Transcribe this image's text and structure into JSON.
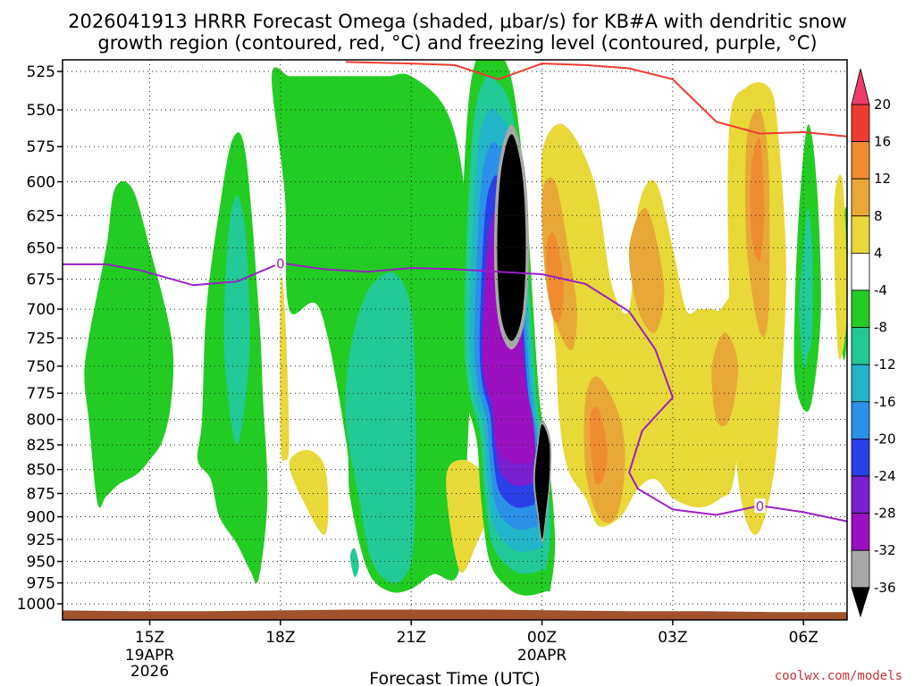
{
  "colors": {
    "fz_contour": "#9b1fc4",
    "dgz_contour": "#ee3b30",
    "terrain": "#a0522d",
    "credit": "#cc3333"
  },
  "credit": "coolwx.com/models",
  "chart_data": {
    "type": "heatmap",
    "title_line1": "2026041913 HRRR Forecast Omega (shaded, μbar/s) for KB#A with dendritic snow",
    "title_line2": "growth region (contoured, red, °C) and freezing level (contoured, purple, °C)",
    "xlabel": "Forecast Time (UTC)",
    "ylabel": "",
    "x_units": "hours after 13Z 19APR",
    "xlim": [
      0,
      18
    ],
    "ylim": [
      1000,
      525
    ],
    "grid": true,
    "x_ticks": [
      {
        "x": 2,
        "label": "15Z",
        "sub1": "19APR",
        "sub2": "2026"
      },
      {
        "x": 5,
        "label": "18Z",
        "sub1": "",
        "sub2": ""
      },
      {
        "x": 8,
        "label": "21Z",
        "sub1": "",
        "sub2": ""
      },
      {
        "x": 11,
        "label": "00Z",
        "sub1": "20APR",
        "sub2": ""
      },
      {
        "x": 14,
        "label": "03Z",
        "sub1": "",
        "sub2": ""
      },
      {
        "x": 17,
        "label": "06Z",
        "sub1": "",
        "sub2": ""
      }
    ],
    "y_ticks": [
      "525",
      "550",
      "575",
      "600",
      "625",
      "650",
      "675",
      "700",
      "725",
      "750",
      "775",
      "800",
      "825",
      "850",
      "875",
      "900",
      "925",
      "950",
      "975",
      "1000"
    ],
    "colorbar": {
      "labels": [
        "20",
        "16",
        "12",
        "8",
        "4",
        "-4",
        "-8",
        "-12",
        "-16",
        "-20",
        "-24",
        "-28",
        "-32",
        "-36"
      ],
      "colors": [
        "#ee3b6a",
        "#ee3b30",
        "#f08c30",
        "#e8a838",
        "#e8d838",
        "#ffffff",
        "#22cc22",
        "#22c896",
        "#22b4c8",
        "#2a90e8",
        "#2a40e8",
        "#7a20d0",
        "#9b10c0",
        "#a8a8a8",
        "#000000"
      ]
    },
    "freezing_level": {
      "label": "0",
      "x": [
        0,
        1,
        1.8,
        3,
        4,
        5,
        6,
        7,
        8,
        9,
        10,
        11,
        12,
        13,
        13.6,
        14,
        13.3,
        13,
        13.2,
        14,
        15,
        16,
        17,
        18
      ],
      "p": [
        663,
        663,
        668,
        680,
        677,
        662,
        667,
        669,
        666,
        667,
        669,
        671,
        679,
        702,
        735,
        779,
        811,
        853,
        870,
        892,
        898,
        888,
        895,
        905
      ]
    },
    "dgz_top": {
      "x": [
        6.5,
        8,
        9,
        10,
        11,
        12,
        13,
        14,
        15,
        16,
        17,
        18
      ],
      "p": [
        519,
        520,
        521,
        530,
        520,
        521,
        523,
        530,
        558,
        566,
        565,
        568
      ]
    },
    "terrain_pressure": [
      1008,
      1009,
      1009,
      1008,
      1007,
      1007,
      1007,
      1008,
      1009,
      1009,
      1010,
      1010
    ],
    "omega_regions": [
      {
        "name": "west-green",
        "x": [
          0.6,
          1.0,
          1.2,
          1.6,
          2.0,
          2.5,
          2.5,
          2.3,
          2.0,
          1.7,
          1.3,
          1.0,
          0.8,
          0.6,
          0.5
        ],
        "p": [
          725,
          650,
          605,
          605,
          650,
          725,
          780,
          820,
          840,
          855,
          865,
          878,
          885,
          800,
          760
        ],
        "value": -6
      },
      {
        "name": "col2-green",
        "x": [
          3.2,
          3.3,
          3.6,
          3.9,
          4.2,
          4.5,
          4.6,
          4.7,
          4.5,
          4.3,
          4.0,
          3.6,
          3.4,
          3.1
        ],
        "p": [
          800,
          700,
          620,
          570,
          580,
          700,
          780,
          880,
          970,
          960,
          930,
          900,
          860,
          840
        ],
        "value": -6
      },
      {
        "name": "col2-teal",
        "x": [
          3.7,
          3.8,
          4.0,
          4.2,
          4.3,
          4.2,
          4.0,
          3.8
        ],
        "p": [
          720,
          640,
          610,
          640,
          720,
          780,
          825,
          780
        ],
        "value": -10
      },
      {
        "name": "big-green",
        "x": [
          4.8,
          5.2,
          5.5,
          5.6,
          6.2,
          6.7,
          7.2,
          7.5,
          8.0,
          8.8,
          9.2,
          9.4,
          9.3,
          9.1,
          8.5,
          8.0,
          7.5,
          7.0,
          6.6,
          6.5,
          5.9,
          5.2,
          5.1
        ],
        "p": [
          528,
          528,
          528,
          528,
          528,
          528,
          528,
          528,
          528,
          550,
          600,
          700,
          820,
          960,
          965,
          982,
          985,
          960,
          880,
          820,
          700,
          700,
          610
        ],
        "value": -6
      },
      {
        "name": "big-teal",
        "x": [
          6.5,
          6.6,
          7.0,
          7.6,
          8.0,
          8.1,
          8.1,
          8.0,
          7.6,
          7.1,
          6.8
        ],
        "p": [
          800,
          735,
          685,
          670,
          700,
          780,
          870,
          950,
          975,
          950,
          880
        ],
        "value": -10
      },
      {
        "name": "tiny-teal",
        "x": [
          6.6,
          6.7,
          6.8,
          6.7
        ],
        "p": [
          945,
          935,
          955,
          968
        ],
        "value": -10
      },
      {
        "name": "east-green",
        "x": [
          16.8,
          16.9,
          17.1,
          17.3,
          17.4,
          17.2,
          17.0,
          16.8
        ],
        "p": [
          700,
          620,
          560,
          600,
          700,
          780,
          790,
          760
        ],
        "value": -6
      },
      {
        "name": "east-teal",
        "x": [
          16.9,
          17.0,
          17.1,
          17.2,
          17.2,
          17.1,
          17.0
        ],
        "p": [
          700,
          650,
          620,
          650,
          720,
          740,
          750
        ],
        "value": -10
      },
      {
        "name": "far-east-green",
        "x": [
          17.8,
          18.0,
          18.0,
          17.9
        ],
        "p": [
          660,
          620,
          720,
          740
        ],
        "value": -6
      }
    ],
    "omega_core": {
      "x": [
        9.1,
        9.3,
        9.6,
        9.9,
        10.3,
        10.6,
        10.8,
        10.9,
        11.0,
        11.2,
        11.3,
        11.2,
        11.1,
        10.6,
        10.2,
        9.8,
        9.6,
        9.5,
        9.2
      ],
      "p": [
        700,
        550,
        510,
        510,
        530,
        600,
        700,
        760,
        800,
        860,
        930,
        980,
        985,
        990,
        980,
        950,
        880,
        820,
        770
      ],
      "layers": [
        {
          "name": "green",
          "value": -6,
          "scale": 1.0
        },
        {
          "name": "teal",
          "value": -10,
          "scale": 0.9
        },
        {
          "name": "cyan",
          "value": -14,
          "scale": 0.8
        },
        {
          "name": "blue",
          "value": -18,
          "scale": 0.7
        },
        {
          "name": "dkblue",
          "value": -22,
          "scale": 0.6
        },
        {
          "name": "purple",
          "value": -26,
          "scale": 0.5
        },
        {
          "name": "violet",
          "value": -30,
          "scale": 0.4
        }
      ]
    },
    "omega_black_upper": {
      "x": [
        9.9,
        10.0,
        10.3,
        10.6,
        10.7,
        10.6,
        10.3,
        10.0
      ],
      "p": [
        650,
        590,
        560,
        590,
        650,
        710,
        735,
        710
      ],
      "value": -34
    },
    "omega_black_lower": {
      "x": [
        10.8,
        10.9,
        11.0,
        11.2,
        11.2,
        11.1,
        11.0,
        10.9
      ],
      "p": [
        860,
        820,
        800,
        820,
        860,
        900,
        930,
        900
      ],
      "value": -34
    },
    "omega_pos_regions": [
      {
        "name": "pos-18z-sliver",
        "x": [
          5.0,
          5.1,
          5.2,
          5.1,
          5.0
        ],
        "p": [
          680,
          700,
          820,
          840,
          820
        ],
        "value": 6
      },
      {
        "name": "pos-18z-blob",
        "x": [
          5.2,
          5.6,
          6.0,
          6.1,
          6.0,
          5.6
        ],
        "p": [
          845,
          830,
          845,
          890,
          920,
          890
        ],
        "value": 6
      },
      {
        "name": "pos-21z-blob",
        "x": [
          8.8,
          9.2,
          9.8,
          9.9,
          9.5,
          9.1
        ],
        "p": [
          860,
          840,
          860,
          880,
          930,
          960
        ],
        "value": 6
      },
      {
        "name": "pos-main",
        "x": [
          11.0,
          11.5,
          12.2,
          12.6,
          13.0,
          13.2,
          13.6,
          14.0,
          14.3,
          14.6,
          14.9,
          15.1,
          15.4,
          15.6,
          15.6,
          15.4,
          15.1,
          14.6,
          14.0,
          13.6,
          13.2,
          12.8,
          12.3,
          12.0,
          11.6,
          11.4,
          11.3,
          11.1
        ],
        "p": [
          580,
          560,
          600,
          680,
          700,
          620,
          600,
          650,
          700,
          700,
          700,
          700,
          680,
          640,
          760,
          860,
          880,
          890,
          880,
          860,
          870,
          900,
          910,
          880,
          850,
          800,
          730,
          650
        ],
        "value": 6
      },
      {
        "name": "pos-east",
        "x": [
          15.3,
          15.7,
          16.2,
          16.4,
          16.6,
          16.5,
          16.3,
          15.9,
          15.5,
          15.3
        ],
        "p": [
          560,
          535,
          535,
          560,
          660,
          760,
          860,
          920,
          860,
          700
        ],
        "value": 6
      },
      {
        "name": "pos-far-east",
        "x": [
          17.7,
          17.9,
          18.0,
          17.8
        ],
        "p": [
          620,
          600,
          700,
          740
        ],
        "value": 6
      }
    ],
    "omega_orange_regions": [
      {
        "name": "orng-00z",
        "x": [
          11.0,
          11.3,
          11.6,
          11.8,
          11.7,
          11.4,
          11.1
        ],
        "p": [
          610,
          600,
          650,
          700,
          735,
          720,
          680
        ],
        "value": 10
      },
      {
        "name": "orng-01z",
        "x": [
          12.0,
          12.3,
          12.8,
          12.9,
          12.7,
          12.3,
          12.0
        ],
        "p": [
          780,
          760,
          800,
          850,
          900,
          900,
          850
        ],
        "value": 10
      },
      {
        "name": "orng-02z",
        "x": [
          13.0,
          13.4,
          13.8,
          13.6,
          13.2
        ],
        "p": [
          650,
          620,
          680,
          720,
          700
        ],
        "value": 10
      },
      {
        "name": "orng-04z",
        "x": [
          15.7,
          16.0,
          16.2,
          16.2,
          16.0,
          15.7
        ],
        "p": [
          570,
          550,
          590,
          700,
          720,
          650
        ],
        "value": 10
      },
      {
        "name": "orng-0330z",
        "x": [
          14.9,
          15.2,
          15.5,
          15.3,
          15.0
        ],
        "p": [
          750,
          720,
          750,
          800,
          800
        ],
        "value": 10
      }
    ],
    "omega_red_regions": [
      {
        "name": "red-00z",
        "x": [
          11.1,
          11.3,
          11.5,
          11.4,
          11.2
        ],
        "p": [
          650,
          640,
          680,
          710,
          700
        ],
        "value": 14
      },
      {
        "name": "red-01z",
        "x": [
          12.1,
          12.3,
          12.5,
          12.4,
          12.2
        ],
        "p": [
          800,
          790,
          830,
          860,
          860
        ],
        "value": 14
      },
      {
        "name": "red-04z",
        "x": [
          15.8,
          16.0,
          16.1,
          16.0,
          15.8
        ],
        "p": [
          590,
          570,
          620,
          660,
          640
        ],
        "value": 14
      }
    ]
  }
}
